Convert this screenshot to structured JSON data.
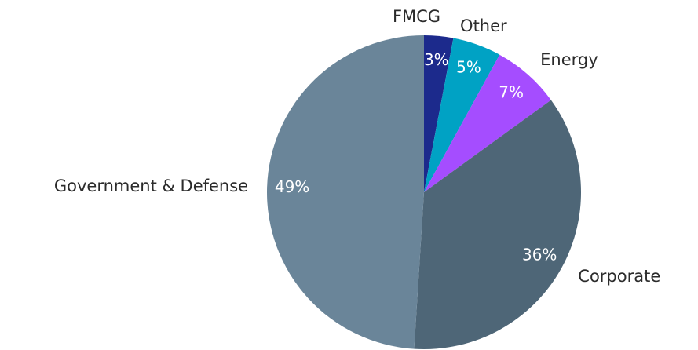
{
  "chart_data": {
    "type": "pie",
    "categories": [
      "FMCG",
      "Other",
      "Energy",
      "Corporate",
      "Government & Defense"
    ],
    "values": [
      3,
      5,
      7,
      36,
      49
    ],
    "value_labels": [
      "3%",
      "5%",
      "7%",
      "36%",
      "49%"
    ],
    "colors": [
      "#1c2a8c",
      "#00a2c4",
      "#a54dff",
      "#4e6677",
      "#6a8599"
    ]
  }
}
